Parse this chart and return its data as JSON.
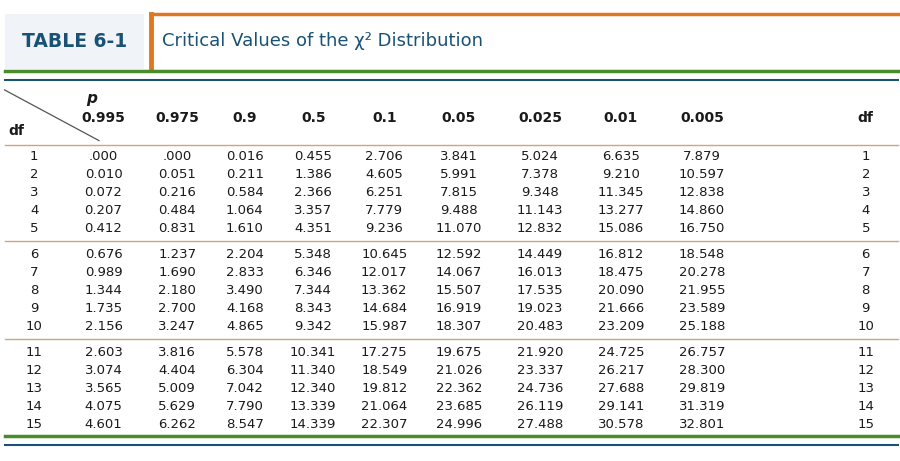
{
  "title_label": "TABLE 6-1",
  "title_text": "Critical Values of the χ² Distribution",
  "header_p": "p",
  "header_df_left": "df",
  "header_df_right": "df",
  "col_headers": [
    "0.995",
    "0.975",
    "0.9",
    "0.5",
    "0.1",
    "0.05",
    "0.025",
    "0.01",
    "0.005"
  ],
  "rows": [
    [
      1,
      ".000",
      ".000",
      "0.016",
      "0.455",
      "2.706",
      "3.841",
      "5.024",
      "6.635",
      "7.879"
    ],
    [
      2,
      "0.010",
      "0.051",
      "0.211",
      "1.386",
      "4.605",
      "5.991",
      "7.378",
      "9.210",
      "10.597"
    ],
    [
      3,
      "0.072",
      "0.216",
      "0.584",
      "2.366",
      "6.251",
      "7.815",
      "9.348",
      "11.345",
      "12.838"
    ],
    [
      4,
      "0.207",
      "0.484",
      "1.064",
      "3.357",
      "7.779",
      "9.488",
      "11.143",
      "13.277",
      "14.860"
    ],
    [
      5,
      "0.412",
      "0.831",
      "1.610",
      "4.351",
      "9.236",
      "11.070",
      "12.832",
      "15.086",
      "16.750"
    ],
    [
      6,
      "0.676",
      "1.237",
      "2.204",
      "5.348",
      "10.645",
      "12.592",
      "14.449",
      "16.812",
      "18.548"
    ],
    [
      7,
      "0.989",
      "1.690",
      "2.833",
      "6.346",
      "12.017",
      "14.067",
      "16.013",
      "18.475",
      "20.278"
    ],
    [
      8,
      "1.344",
      "2.180",
      "3.490",
      "7.344",
      "13.362",
      "15.507",
      "17.535",
      "20.090",
      "21.955"
    ],
    [
      9,
      "1.735",
      "2.700",
      "4.168",
      "8.343",
      "14.684",
      "16.919",
      "19.023",
      "21.666",
      "23.589"
    ],
    [
      10,
      "2.156",
      "3.247",
      "4.865",
      "9.342",
      "15.987",
      "18.307",
      "20.483",
      "23.209",
      "25.188"
    ],
    [
      11,
      "2.603",
      "3.816",
      "5.578",
      "10.341",
      "17.275",
      "19.675",
      "21.920",
      "24.725",
      "26.757"
    ],
    [
      12,
      "3.074",
      "4.404",
      "6.304",
      "11.340",
      "18.549",
      "21.026",
      "23.337",
      "26.217",
      "28.300"
    ],
    [
      13,
      "3.565",
      "5.009",
      "7.042",
      "12.340",
      "19.812",
      "22.362",
      "24.736",
      "27.688",
      "29.819"
    ],
    [
      14,
      "4.075",
      "5.629",
      "7.790",
      "13.339",
      "21.064",
      "23.685",
      "26.119",
      "29.141",
      "31.319"
    ],
    [
      15,
      "4.601",
      "6.262",
      "8.547",
      "14.339",
      "22.307",
      "24.996",
      "27.488",
      "30.578",
      "32.801"
    ]
  ],
  "group_separators": [
    5,
    10
  ],
  "bg_color": "#ffffff",
  "title_label_color": "#1a5276",
  "title_text_color": "#1a5276",
  "orange_line_color": "#e07820",
  "green_line_color": "#4a8c2a",
  "blue_line_color": "#1a5276",
  "separator_color": "#c8a882",
  "data_text_color": "#1a1a1a",
  "header_text_color": "#1a1a1a",
  "font_size_data": 9.5,
  "font_size_header": 10.0,
  "font_size_title_label": 13.5,
  "font_size_title_text": 13.0
}
